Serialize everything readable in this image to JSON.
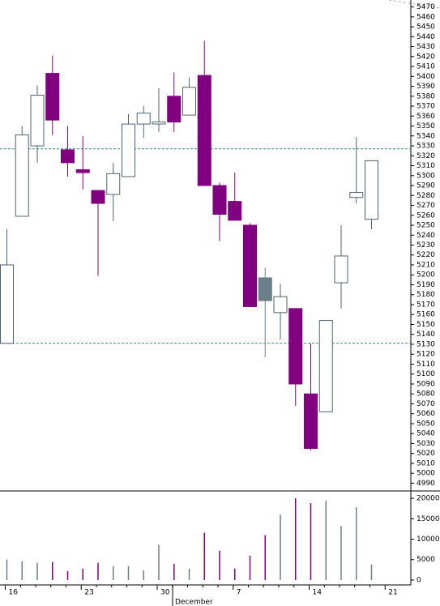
{
  "chart_data": {
    "type": "candlestick",
    "categories": [
      "16",
      null,
      null,
      null,
      null,
      "23",
      null,
      null,
      null,
      null,
      "30",
      null,
      null,
      null,
      null,
      "7",
      null,
      null,
      null,
      null,
      "14",
      null,
      null,
      null,
      null,
      "21"
    ],
    "month_label": "December",
    "open": [
      5131,
      5259,
      5330,
      5403,
      5326,
      5306,
      5285,
      5281,
      5299,
      5352,
      5352,
      5380,
      5361,
      5401,
      5290,
      5274,
      5250,
      5197,
      5162,
      5166,
      5080,
      5062,
      5192,
      5278,
      5256,
      null
    ],
    "high": [
      5246,
      5350,
      5391,
      5421,
      5350,
      5340,
      5285,
      5313,
      5362,
      5370,
      5388,
      5404,
      5399,
      5436,
      5293,
      5303,
      5252,
      5207,
      5191,
      5166,
      5131,
      5154,
      5250,
      5339,
      5315,
      null
    ],
    "low": [
      5131,
      5259,
      5313,
      5341,
      5299,
      5286,
      5199,
      5254,
      5299,
      5338,
      5344,
      5344,
      5361,
      5290,
      5234,
      5255,
      5168,
      5117,
      5135,
      5068,
      5023,
      5062,
      5166,
      5272,
      5246,
      null
    ],
    "close": [
      5210,
      5341,
      5381,
      5356,
      5313,
      5303,
      5272,
      5302,
      5352,
      5363,
      5354,
      5354,
      5389,
      5290,
      5261,
      5255,
      5168,
      5174,
      5178,
      5090,
      5025,
      5154,
      5219,
      5283,
      5315,
      null
    ],
    "up_color": "#ffffff",
    "up_edge_color": "#4d6470",
    "down_color": "#800080",
    "highlight": {
      "index": 17,
      "color": "#6b7f88"
    },
    "ylim": [
      4983,
      5477
    ],
    "yticks": [
      4990,
      5000,
      5010,
      5020,
      5030,
      5040,
      5050,
      5060,
      5070,
      5080,
      5090,
      5100,
      5110,
      5120,
      5130,
      5140,
      5150,
      5160,
      5170,
      5180,
      5190,
      5200,
      5210,
      5220,
      5230,
      5240,
      5250,
      5260,
      5270,
      5280,
      5290,
      5300,
      5310,
      5320,
      5330,
      5340,
      5350,
      5360,
      5370,
      5380,
      5390,
      5400,
      5410,
      5420,
      5430,
      5440,
      5450,
      5460,
      5470
    ],
    "reference_lines": [
      5327,
      5131
    ],
    "reference_color": "#2e8b8b",
    "volume": {
      "values": [
        5000,
        4600,
        4200,
        4400,
        2200,
        2800,
        4200,
        3400,
        3400,
        2400,
        8600,
        4000,
        2800,
        11600,
        7200,
        2800,
        6000,
        11000,
        16000,
        20000,
        18800,
        19400,
        13200,
        17800,
        3800,
        null
      ],
      "up_color": "#6b7f88",
      "down_color": "#800080",
      "ylim": [
        -1200,
        21600
      ],
      "yticks": [
        0,
        5000,
        10000,
        15000,
        20000
      ]
    }
  }
}
